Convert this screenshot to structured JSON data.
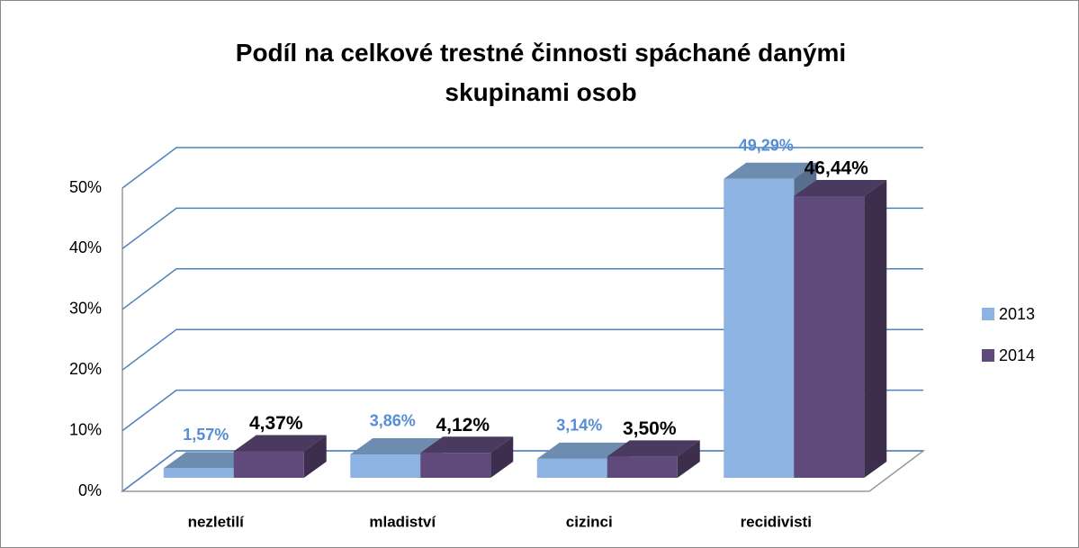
{
  "chart_data": {
    "type": "bar3d",
    "title": "Podíl na celkové trestné činnosti spáchané danými skupinami osob",
    "categories": [
      "nezletilí",
      "mladiství",
      "cizinci",
      "recidivisti"
    ],
    "series": [
      {
        "name": "2013",
        "color": "#8db3e2",
        "values": [
          1.57,
          3.86,
          3.14,
          49.29
        ],
        "value_labels": [
          "1,57%",
          "3,86%",
          "3,14%",
          "49,29%"
        ],
        "label_color": "#558ed5"
      },
      {
        "name": "2014",
        "color": "#604a7b",
        "values": [
          4.37,
          4.12,
          3.5,
          46.44
        ],
        "value_labels": [
          "4,37%",
          "4,12%",
          "3,50%",
          "46,44%"
        ],
        "label_color": "#000000"
      }
    ],
    "ylim": [
      0,
      50
    ],
    "yticks": [
      {
        "value": 0,
        "label": "0%"
      },
      {
        "value": 10,
        "label": "10%"
      },
      {
        "value": 20,
        "label": "20%"
      },
      {
        "value": 30,
        "label": "30%"
      },
      {
        "value": 40,
        "label": "40%"
      },
      {
        "value": 50,
        "label": "50%"
      }
    ],
    "grid": true,
    "grid_color": "#4f81bd",
    "legend": "right"
  }
}
